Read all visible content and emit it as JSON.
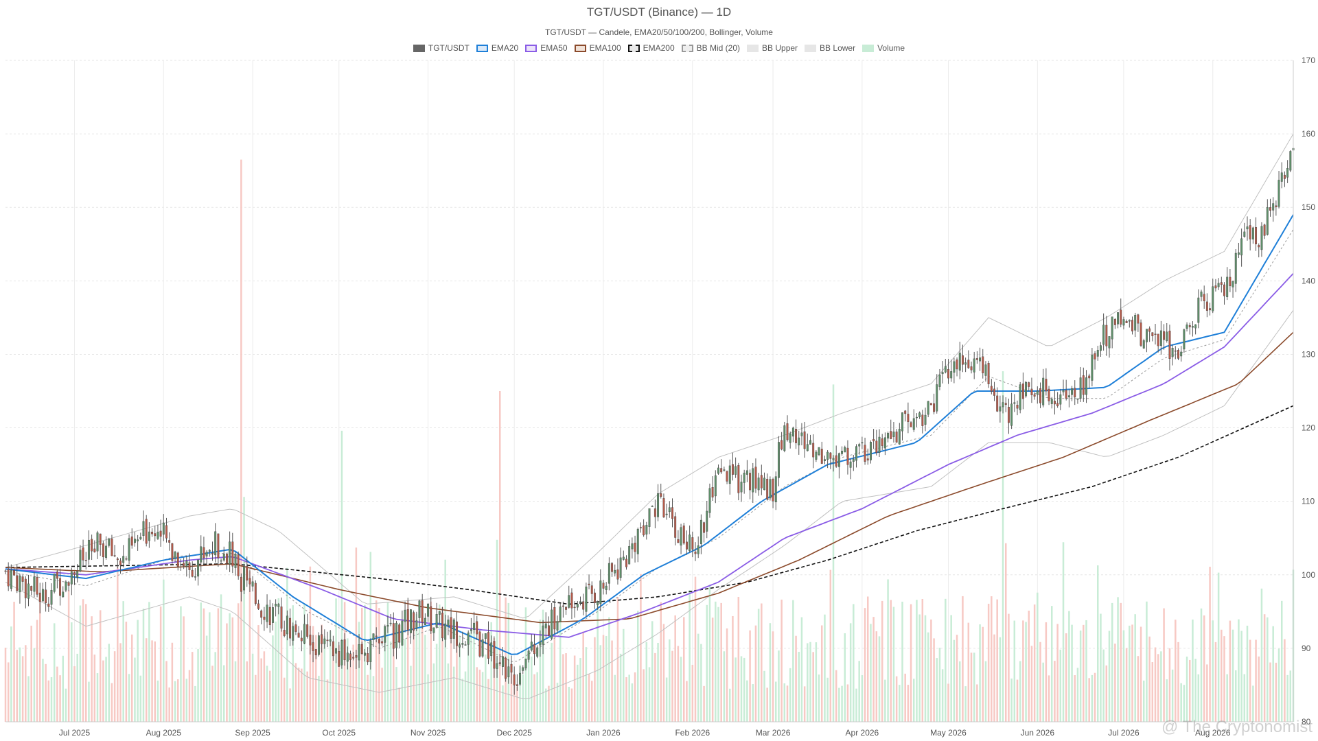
{
  "page": {
    "title": "TGT/USDT (Binance) — 1D",
    "subtitle": "TGT/USDT — Candele, EMA20/50/100/200, Bollinger, Volume",
    "watermark": "@ The Cryptonomist"
  },
  "legend": [
    {
      "label": "TGT/USDT",
      "icon": "candle-swatch",
      "fill": "#666666",
      "border": "#666666",
      "dashed": false
    },
    {
      "label": "EMA20",
      "icon": "line-swatch",
      "fill": "#dbe9f8",
      "border": "#1e7fd8",
      "dashed": false
    },
    {
      "label": "EMA50",
      "icon": "line-swatch",
      "fill": "#ece3fa",
      "border": "#8a5ce6",
      "dashed": false
    },
    {
      "label": "EMA100",
      "icon": "line-swatch",
      "fill": "#f1e2d8",
      "border": "#8b4a2b",
      "dashed": false
    },
    {
      "label": "EMA200",
      "icon": "line-swatch",
      "fill": "#e8e8e8",
      "border": "#111111",
      "dashed": true
    },
    {
      "label": "BB Mid (20)",
      "icon": "line-swatch",
      "fill": "#eeeeee",
      "border": "#999999",
      "dashed": true
    },
    {
      "label": "BB Upper",
      "icon": "line-swatch",
      "fill": "#e6e6e6",
      "border": "#e6e6e6",
      "dashed": false
    },
    {
      "label": "BB Lower",
      "icon": "line-swatch",
      "fill": "#e6e6e6",
      "border": "#e6e6e6",
      "dashed": false
    },
    {
      "label": "Volume",
      "icon": "bar-swatch",
      "fill": "#c8ecd6",
      "border": "#c8ecd6",
      "dashed": false
    }
  ],
  "chart_data": {
    "type": "candlestick",
    "x_range": [
      "2025-06-07",
      "2026-08-29"
    ],
    "ylim": [
      80,
      170
    ],
    "y_ticks": [
      80,
      90,
      100,
      110,
      120,
      130,
      140,
      150,
      160,
      170
    ],
    "y_tick_labels": [
      "80",
      "90",
      "100",
      "110",
      "120",
      "130",
      "140",
      "150",
      "160",
      "170"
    ],
    "x_ticks": [
      "2025-07-01",
      "2025-08-01",
      "2025-09-01",
      "2025-10-01",
      "2025-11-01",
      "2025-12-01",
      "2026-01-01",
      "2026-02-01",
      "2026-03-01",
      "2026-04-01",
      "2026-05-01",
      "2026-06-01",
      "2026-07-01",
      "2026-08-01"
    ],
    "x_tick_labels": [
      "Jul 2025",
      "Aug 2025",
      "Sep 2025",
      "Oct 2025",
      "Nov 2025",
      "Dec 2025",
      "Jan 2026",
      "Feb 2026",
      "Mar 2026",
      "Apr 2026",
      "May 2026",
      "Jun 2026",
      "Jul 2026",
      "Aug 2026"
    ],
    "grid": true,
    "y_axis_side": "right",
    "legend_position": "top",
    "colors": {
      "up": "#5f8f6a",
      "down": "#b55a4a",
      "wick": "#555555",
      "volume_up": "#c8ecd6",
      "volume_down": "#f7c9c4",
      "ema20": "#1e7fd8",
      "ema50": "#8a5ce6",
      "ema100": "#8b4a2b",
      "ema200": "#111111",
      "bb_mid": "#999999",
      "bb_band": "#c0c0c0"
    },
    "price_path": [
      [
        "2025-06-07",
        100.5
      ],
      [
        "2025-06-20",
        97
      ],
      [
        "2025-07-01",
        101
      ],
      [
        "2025-07-10",
        104
      ],
      [
        "2025-07-18",
        102
      ],
      [
        "2025-07-28",
        107
      ],
      [
        "2025-08-05",
        103
      ],
      [
        "2025-08-10",
        101
      ],
      [
        "2025-08-17",
        104
      ],
      [
        "2025-08-22",
        104
      ],
      [
        "2025-09-01",
        97
      ],
      [
        "2025-09-10",
        94
      ],
      [
        "2025-09-20",
        91
      ],
      [
        "2025-09-30",
        89
      ],
      [
        "2025-10-10",
        90
      ],
      [
        "2025-10-20",
        92
      ],
      [
        "2025-10-30",
        95
      ],
      [
        "2025-11-05",
        93
      ],
      [
        "2025-11-15",
        92
      ],
      [
        "2025-11-25",
        89
      ],
      [
        "2025-12-01",
        86
      ],
      [
        "2025-12-08",
        91
      ],
      [
        "2025-12-20",
        96
      ],
      [
        "2025-12-31",
        98
      ],
      [
        "2026-01-10",
        103
      ],
      [
        "2026-01-18",
        110
      ],
      [
        "2026-01-25",
        107
      ],
      [
        "2026-02-01",
        103
      ],
      [
        "2026-02-10",
        113
      ],
      [
        "2026-02-20",
        113
      ],
      [
        "2026-03-01",
        112
      ],
      [
        "2026-03-05",
        120
      ],
      [
        "2026-03-15",
        117
      ],
      [
        "2026-03-25",
        116
      ],
      [
        "2026-04-05",
        117
      ],
      [
        "2026-04-15",
        120
      ],
      [
        "2026-04-25",
        123
      ],
      [
        "2026-05-01",
        128
      ],
      [
        "2026-05-10",
        129
      ],
      [
        "2026-05-15",
        126
      ],
      [
        "2026-05-20",
        122
      ],
      [
        "2026-05-26",
        124
      ],
      [
        "2026-06-05",
        125
      ],
      [
        "2026-06-15",
        124
      ],
      [
        "2026-06-22",
        132
      ],
      [
        "2026-07-01",
        135
      ],
      [
        "2026-07-10",
        132
      ],
      [
        "2026-07-20",
        131
      ],
      [
        "2026-07-28",
        137
      ],
      [
        "2026-08-05",
        138
      ],
      [
        "2026-08-12",
        145
      ],
      [
        "2026-08-18",
        147
      ],
      [
        "2026-08-24",
        152
      ],
      [
        "2026-08-29",
        157
      ]
    ],
    "ema20": [
      [
        "2025-06-07",
        100.8
      ],
      [
        "2025-07-05",
        99.5
      ],
      [
        "2025-08-01",
        102
      ],
      [
        "2025-08-25",
        103.5
      ],
      [
        "2025-09-15",
        97
      ],
      [
        "2025-10-10",
        91
      ],
      [
        "2025-11-05",
        93.5
      ],
      [
        "2025-12-01",
        89
      ],
      [
        "2025-12-25",
        94
      ],
      [
        "2026-01-15",
        100
      ],
      [
        "2026-02-05",
        104
      ],
      [
        "2026-02-25",
        110
      ],
      [
        "2026-03-20",
        115
      ],
      [
        "2026-04-20",
        118
      ],
      [
        "2026-05-10",
        125
      ],
      [
        "2026-06-01",
        125
      ],
      [
        "2026-06-25",
        125.5
      ],
      [
        "2026-07-15",
        131
      ],
      [
        "2026-08-05",
        133
      ],
      [
        "2026-08-29",
        149
      ]
    ],
    "ema50": [
      [
        "2025-06-07",
        100.8
      ],
      [
        "2025-07-05",
        100
      ],
      [
        "2025-08-10",
        102
      ],
      [
        "2025-08-25",
        102.5
      ],
      [
        "2025-09-25",
        98
      ],
      [
        "2025-10-20",
        94
      ],
      [
        "2025-11-20",
        92.5
      ],
      [
        "2025-12-20",
        91.5
      ],
      [
        "2026-01-15",
        95
      ],
      [
        "2026-02-10",
        99
      ],
      [
        "2026-03-05",
        105
      ],
      [
        "2026-04-01",
        109
      ],
      [
        "2026-05-01",
        115
      ],
      [
        "2026-05-25",
        119
      ],
      [
        "2026-06-20",
        122
      ],
      [
        "2026-07-15",
        126
      ],
      [
        "2026-08-05",
        131
      ],
      [
        "2026-08-29",
        141
      ]
    ],
    "ema100": [
      [
        "2025-06-07",
        101
      ],
      [
        "2025-07-10",
        100.4
      ],
      [
        "2025-08-25",
        101.5
      ],
      [
        "2025-10-01",
        98
      ],
      [
        "2025-11-01",
        95.5
      ],
      [
        "2025-12-10",
        93.5
      ],
      [
        "2026-01-10",
        94
      ],
      [
        "2026-02-10",
        97.5
      ],
      [
        "2026-03-10",
        102
      ],
      [
        "2026-04-10",
        108
      ],
      [
        "2026-05-10",
        112
      ],
      [
        "2026-06-10",
        116
      ],
      [
        "2026-07-10",
        121
      ],
      [
        "2026-08-10",
        126
      ],
      [
        "2026-08-29",
        133
      ]
    ],
    "ema200": [
      [
        "2025-06-07",
        101
      ],
      [
        "2025-08-25",
        101.5
      ],
      [
        "2025-10-15",
        99.5
      ],
      [
        "2025-11-15",
        98
      ],
      [
        "2025-12-20",
        96
      ],
      [
        "2026-01-20",
        97
      ],
      [
        "2026-02-20",
        99
      ],
      [
        "2026-03-20",
        102
      ],
      [
        "2026-04-20",
        106
      ],
      [
        "2026-05-20",
        109
      ],
      [
        "2026-06-20",
        112
      ],
      [
        "2026-07-20",
        116
      ],
      [
        "2026-08-29",
        123
      ]
    ],
    "bb_mid": [
      [
        "2025-06-07",
        100.5
      ],
      [
        "2025-07-05",
        98.5
      ],
      [
        "2025-08-05",
        102.5
      ],
      [
        "2025-08-25",
        103
      ],
      [
        "2025-09-20",
        95
      ],
      [
        "2025-10-15",
        90
      ],
      [
        "2025-11-05",
        93
      ],
      [
        "2025-12-01",
        88
      ],
      [
        "2025-12-30",
        95
      ],
      [
        "2026-01-20",
        101
      ],
      [
        "2026-02-10",
        105
      ],
      [
        "2026-03-05",
        112
      ],
      [
        "2026-03-25",
        116
      ],
      [
        "2026-04-25",
        119
      ],
      [
        "2026-05-15",
        127
      ],
      [
        "2026-06-05",
        124
      ],
      [
        "2026-06-25",
        124
      ],
      [
        "2026-07-15",
        129.5
      ],
      [
        "2026-08-05",
        132
      ],
      [
        "2026-08-29",
        147
      ]
    ],
    "bb_upper": [
      [
        "2025-06-07",
        101
      ],
      [
        "2025-07-05",
        104
      ],
      [
        "2025-08-10",
        108
      ],
      [
        "2025-08-25",
        109
      ],
      [
        "2025-09-10",
        106
      ],
      [
        "2025-10-10",
        96
      ],
      [
        "2025-11-10",
        97
      ],
      [
        "2025-12-05",
        94
      ],
      [
        "2025-12-30",
        103
      ],
      [
        "2026-01-20",
        111
      ],
      [
        "2026-02-10",
        116
      ],
      [
        "2026-03-05",
        119
      ],
      [
        "2026-03-25",
        122
      ],
      [
        "2026-04-25",
        126
      ],
      [
        "2026-05-15",
        135
      ],
      [
        "2026-06-05",
        131
      ],
      [
        "2026-06-25",
        135
      ],
      [
        "2026-07-15",
        140
      ],
      [
        "2026-08-05",
        144
      ],
      [
        "2026-08-29",
        160
      ]
    ],
    "bb_lower": [
      [
        "2025-06-07",
        99
      ],
      [
        "2025-07-05",
        93
      ],
      [
        "2025-08-10",
        97
      ],
      [
        "2025-08-25",
        95
      ],
      [
        "2025-09-20",
        86
      ],
      [
        "2025-10-15",
        84
      ],
      [
        "2025-11-10",
        86
      ],
      [
        "2025-12-05",
        83
      ],
      [
        "2025-12-30",
        87
      ],
      [
        "2026-01-20",
        92
      ],
      [
        "2026-02-10",
        98
      ],
      [
        "2026-03-05",
        104
      ],
      [
        "2026-03-25",
        110
      ],
      [
        "2026-04-25",
        112
      ],
      [
        "2026-05-15",
        118
      ],
      [
        "2026-06-05",
        118
      ],
      [
        "2026-06-25",
        116
      ],
      [
        "2026-07-15",
        119
      ],
      [
        "2026-08-05",
        123
      ],
      [
        "2026-08-29",
        136
      ]
    ],
    "volume_spikes": [
      [
        "2025-08-28",
        85
      ],
      [
        "2025-08-29",
        34
      ],
      [
        "2025-10-02",
        44
      ],
      [
        "2025-11-26",
        50
      ],
      [
        "2026-03-22",
        51
      ],
      [
        "2026-05-20",
        53
      ],
      [
        "2026-05-21",
        27
      ],
      [
        "2026-08-29",
        23
      ]
    ],
    "volume_range": [
      0,
      100
    ]
  }
}
